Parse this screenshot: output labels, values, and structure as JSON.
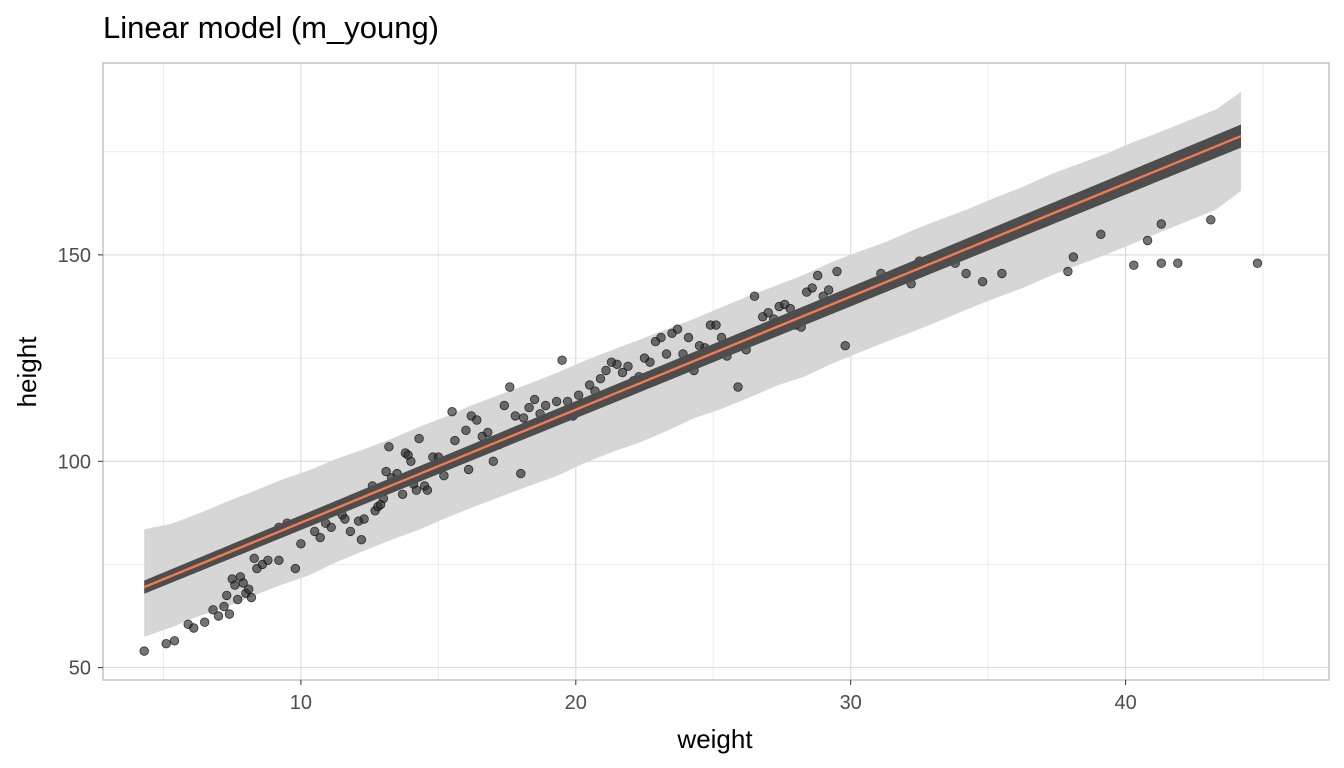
{
  "chart_data": {
    "type": "scatter",
    "title": "Linear model (m_young)",
    "xlabel": "weight",
    "ylabel": "height",
    "xlim": [
      2.8,
      47.4
    ],
    "ylim": [
      47,
      196.5
    ],
    "x_ticks": [
      10,
      20,
      30,
      40
    ],
    "y_ticks": [
      50,
      100,
      150
    ],
    "grid": true,
    "colors": {
      "line": "#f4794e",
      "ci_band": "#4d4d4d",
      "prediction_band": "#d6d6d6",
      "points": "#2b2b2b",
      "grid_major": "#d9d9d9",
      "grid_minor": "#ececec",
      "panel_border": "#b3b3b3"
    },
    "fit_line": {
      "x": [
        4.3,
        44.2
      ],
      "y": [
        69.5,
        178.8
      ]
    },
    "confidence_band": {
      "x": [
        4.3,
        44.2
      ],
      "lower": [
        67.9,
        176.0
      ],
      "upper": [
        71.1,
        181.6
      ]
    },
    "prediction_band": {
      "x": [
        4.3,
        5.3,
        6.3,
        7.3,
        8.3,
        9.3,
        10.3,
        11.3,
        12.3,
        13.3,
        14.3,
        15.3,
        16.3,
        17.3,
        18.3,
        19.3,
        20.3,
        21.3,
        22.3,
        23.3,
        24.3,
        25.3,
        26.3,
        27.3,
        28.3,
        29.3,
        30.3,
        31.3,
        32.3,
        33.3,
        34.3,
        35.3,
        36.3,
        37.3,
        38.3,
        39.3,
        40.3,
        41.3,
        42.3,
        43.3,
        44.2
      ],
      "lower": [
        57.5,
        59.8,
        62.5,
        64.7,
        67.5,
        70.1,
        72.4,
        75.6,
        78.3,
        81.0,
        83.4,
        86.3,
        89.0,
        91.5,
        94.0,
        96.4,
        99.5,
        102.2,
        104.5,
        107.3,
        110.4,
        112.7,
        115.4,
        118.3,
        120.5,
        123.6,
        126.3,
        129.0,
        131.5,
        134.2,
        137.0,
        139.6,
        142.1,
        145.0,
        147.6,
        150.1,
        152.8,
        155.6,
        158.3,
        161.0,
        165.5
      ],
      "upper": [
        83.5,
        84.9,
        87.4,
        90.2,
        92.8,
        95.5,
        97.8,
        100.6,
        102.9,
        105.5,
        108.3,
        110.9,
        113.8,
        116.3,
        118.8,
        121.4,
        124.3,
        126.9,
        129.4,
        132.0,
        134.5,
        137.3,
        140.1,
        142.6,
        145.2,
        148.2,
        150.8,
        153.2,
        156.1,
        158.7,
        161.2,
        164.0,
        166.6,
        169.6,
        172.1,
        174.5,
        177.4,
        179.9,
        182.6,
        185.3,
        189.5
      ]
    },
    "points": [
      [
        4.3,
        54
      ],
      [
        5.1,
        55.8
      ],
      [
        5.4,
        56.5
      ],
      [
        5.9,
        60.5
      ],
      [
        6.1,
        59.6
      ],
      [
        6.5,
        61
      ],
      [
        6.8,
        64
      ],
      [
        7.0,
        62.5
      ],
      [
        7.2,
        64.8
      ],
      [
        7.3,
        67.5
      ],
      [
        7.4,
        63
      ],
      [
        7.5,
        71.5
      ],
      [
        7.6,
        70
      ],
      [
        7.7,
        66.5
      ],
      [
        7.8,
        72
      ],
      [
        7.9,
        70.5
      ],
      [
        8.0,
        68
      ],
      [
        8.1,
        69
      ],
      [
        8.2,
        67
      ],
      [
        8.3,
        76.5
      ],
      [
        8.4,
        74
      ],
      [
        8.6,
        75
      ],
      [
        8.8,
        76
      ],
      [
        9.2,
        84
      ],
      [
        9.5,
        85
      ],
      [
        9.8,
        74
      ],
      [
        9.2,
        76
      ],
      [
        10.0,
        80
      ],
      [
        10.5,
        83
      ],
      [
        10.7,
        81.5
      ],
      [
        10.9,
        85
      ],
      [
        11.1,
        84
      ],
      [
        11.3,
        88
      ],
      [
        11.5,
        87
      ],
      [
        11.6,
        86
      ],
      [
        11.7,
        90
      ],
      [
        11.8,
        83
      ],
      [
        12.0,
        91
      ],
      [
        12.1,
        85.5
      ],
      [
        12.2,
        81
      ],
      [
        12.3,
        86
      ],
      [
        12.4,
        91.5
      ],
      [
        12.5,
        92.5
      ],
      [
        12.6,
        94
      ],
      [
        12.7,
        88
      ],
      [
        12.8,
        89
      ],
      [
        12.9,
        89.5
      ],
      [
        13.0,
        91
      ],
      [
        13.1,
        97.5
      ],
      [
        13.2,
        103.5
      ],
      [
        13.3,
        96
      ],
      [
        13.4,
        94.5
      ],
      [
        13.5,
        97
      ],
      [
        13.6,
        95.5
      ],
      [
        13.7,
        92
      ],
      [
        13.8,
        102
      ],
      [
        13.9,
        101.5
      ],
      [
        14.0,
        100
      ],
      [
        14.1,
        94.5
      ],
      [
        14.2,
        93
      ],
      [
        14.3,
        105.5
      ],
      [
        14.5,
        94
      ],
      [
        14.6,
        93
      ],
      [
        14.8,
        101
      ],
      [
        15.0,
        101
      ],
      [
        15.2,
        96.5
      ],
      [
        15.4,
        99.5
      ],
      [
        15.5,
        112
      ],
      [
        15.6,
        105
      ],
      [
        15.8,
        101.5
      ],
      [
        16.0,
        107.5
      ],
      [
        16.1,
        98
      ],
      [
        16.2,
        111
      ],
      [
        16.4,
        110
      ],
      [
        16.6,
        106
      ],
      [
        16.8,
        107
      ],
      [
        17.0,
        100
      ],
      [
        17.2,
        104
      ],
      [
        17.4,
        113.5
      ],
      [
        17.6,
        118
      ],
      [
        17.8,
        111
      ],
      [
        18.0,
        97
      ],
      [
        18.1,
        110.5
      ],
      [
        18.3,
        113
      ],
      [
        18.5,
        115
      ],
      [
        18.7,
        111.5
      ],
      [
        18.9,
        113.5
      ],
      [
        19.1,
        110.5
      ],
      [
        19.3,
        114.5
      ],
      [
        19.5,
        124.5
      ],
      [
        19.7,
        114.5
      ],
      [
        19.9,
        111
      ],
      [
        20.1,
        116
      ],
      [
        20.3,
        114
      ],
      [
        20.5,
        118.5
      ],
      [
        20.7,
        117
      ],
      [
        20.9,
        120
      ],
      [
        21.1,
        122
      ],
      [
        21.3,
        124
      ],
      [
        21.5,
        123.5
      ],
      [
        21.7,
        121.5
      ],
      [
        21.9,
        123
      ],
      [
        22.1,
        119.5
      ],
      [
        22.3,
        120.5
      ],
      [
        22.5,
        125
      ],
      [
        22.7,
        124
      ],
      [
        22.9,
        129
      ],
      [
        23.1,
        130
      ],
      [
        23.3,
        126
      ],
      [
        23.5,
        131
      ],
      [
        23.7,
        132
      ],
      [
        23.9,
        126
      ],
      [
        24.1,
        130
      ],
      [
        24.3,
        122
      ],
      [
        24.5,
        128
      ],
      [
        24.7,
        127.5
      ],
      [
        24.9,
        133
      ],
      [
        25.1,
        133
      ],
      [
        25.3,
        130
      ],
      [
        25.5,
        125.5
      ],
      [
        25.7,
        129
      ],
      [
        25.9,
        118
      ],
      [
        26.2,
        127
      ],
      [
        26.5,
        140
      ],
      [
        26.8,
        135
      ],
      [
        27.0,
        136
      ],
      [
        27.2,
        134.5
      ],
      [
        27.4,
        137.5
      ],
      [
        27.6,
        138
      ],
      [
        27.8,
        137
      ],
      [
        28.0,
        133
      ],
      [
        28.2,
        132.5
      ],
      [
        28.4,
        141
      ],
      [
        28.6,
        142
      ],
      [
        28.8,
        145
      ],
      [
        29.0,
        140
      ],
      [
        29.2,
        141.5
      ],
      [
        29.5,
        146
      ],
      [
        29.8,
        128
      ],
      [
        31.1,
        145.5
      ],
      [
        32.2,
        143
      ],
      [
        32.4,
        146
      ],
      [
        32.5,
        148.5
      ],
      [
        32.6,
        147.5
      ],
      [
        33.8,
        148
      ],
      [
        34.2,
        145.5
      ],
      [
        34.8,
        143.5
      ],
      [
        35.5,
        145.5
      ],
      [
        37.9,
        146
      ],
      [
        38.1,
        149.5
      ],
      [
        39.1,
        155
      ],
      [
        40.3,
        147.5
      ],
      [
        40.8,
        153.5
      ],
      [
        41.3,
        157.5
      ],
      [
        41.3,
        148
      ],
      [
        41.9,
        148
      ],
      [
        43.1,
        158.5
      ],
      [
        44.8,
        148
      ]
    ]
  }
}
